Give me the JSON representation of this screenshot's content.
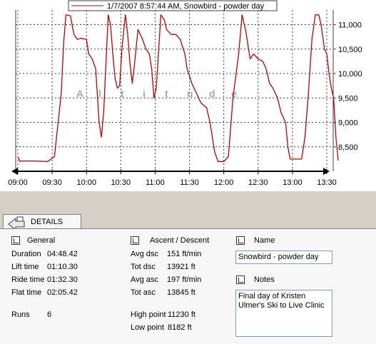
{
  "chart": {
    "legend": "1/7/2007 8:57:44 AM, Snowbird - powder day",
    "watermark": [
      "A",
      "l",
      "t",
      "i",
      "t",
      "u",
      "d",
      "e"
    ],
    "line_color": "#c00000",
    "grid_color": "#404040"
  },
  "chart_data": {
    "type": "line",
    "x_ticks": [
      "09:00",
      "09:30",
      "10:00",
      "10:30",
      "11:00",
      "11:30",
      "12:00",
      "12:30",
      "13:00",
      "13:30"
    ],
    "y_ticks": [
      "8,500",
      "9,000",
      "9,500",
      "10,000",
      "10,500",
      "11,000"
    ],
    "ylim": [
      8000,
      11300
    ],
    "series": [
      {
        "name": "1/7/2007 8:57:44 AM, Snowbird - powder day",
        "points": [
          [
            "09:00",
            8290
          ],
          [
            "09:02",
            8200
          ],
          [
            "09:04",
            8210
          ],
          [
            "09:15",
            8210
          ],
          [
            "09:26",
            8200
          ],
          [
            "09:29",
            8250
          ],
          [
            "09:32",
            8300
          ],
          [
            "09:38",
            9600
          ],
          [
            "09:40",
            10600
          ],
          [
            "09:42",
            11200
          ],
          [
            "09:46",
            11180
          ],
          [
            "09:49",
            10800
          ],
          [
            "09:52",
            10700
          ],
          [
            "09:55",
            10720
          ],
          [
            "10:00",
            10700
          ],
          [
            "10:02",
            10400
          ],
          [
            "10:05",
            10300
          ],
          [
            "10:08",
            10100
          ],
          [
            "10:11",
            9000
          ],
          [
            "10:13",
            8700
          ],
          [
            "10:15",
            9200
          ],
          [
            "10:19",
            11200
          ],
          [
            "10:21",
            11000
          ],
          [
            "10:23",
            10400
          ],
          [
            "10:25",
            9900
          ],
          [
            "10:27",
            9700
          ],
          [
            "10:29",
            9750
          ],
          [
            "10:31",
            10500
          ],
          [
            "10:34",
            11200
          ],
          [
            "10:36",
            10800
          ],
          [
            "10:38",
            10200
          ],
          [
            "10:40",
            9800
          ],
          [
            "10:42",
            10200
          ],
          [
            "10:45",
            10900
          ],
          [
            "10:49",
            10700
          ],
          [
            "10:52",
            10500
          ],
          [
            "10:55",
            10400
          ],
          [
            "10:57",
            10100
          ],
          [
            "10:59",
            9500
          ],
          [
            "11:01",
            9700
          ],
          [
            "11:05",
            11200
          ],
          [
            "11:08",
            11100
          ],
          [
            "11:10",
            10900
          ],
          [
            "11:14",
            10800
          ],
          [
            "11:18",
            10800
          ],
          [
            "11:22",
            10700
          ],
          [
            "11:26",
            10400
          ],
          [
            "11:28",
            10100
          ],
          [
            "11:32",
            9800
          ],
          [
            "11:36",
            9600
          ],
          [
            "11:40",
            9400
          ],
          [
            "11:45",
            9300
          ],
          [
            "11:48",
            9000
          ],
          [
            "11:52",
            8400
          ],
          [
            "11:55",
            8200
          ],
          [
            "12:00",
            8200
          ],
          [
            "12:04",
            8300
          ],
          [
            "12:08",
            9500
          ],
          [
            "12:13",
            10400
          ],
          [
            "12:16",
            11200
          ],
          [
            "12:19",
            10900
          ],
          [
            "12:23",
            10300
          ],
          [
            "12:26",
            10400
          ],
          [
            "12:30",
            10300
          ],
          [
            "12:34",
            10250
          ],
          [
            "12:37",
            10100
          ],
          [
            "12:40",
            9800
          ],
          [
            "12:43",
            9700
          ],
          [
            "12:47",
            9500
          ],
          [
            "12:50",
            9200
          ],
          [
            "12:54",
            9000
          ],
          [
            "12:56",
            8500
          ],
          [
            "12:58",
            8250
          ],
          [
            "13:08",
            8250
          ],
          [
            "13:11",
            8700
          ],
          [
            "13:14",
            9600
          ],
          [
            "13:17",
            10700
          ],
          [
            "13:20",
            11200
          ],
          [
            "13:23",
            11200
          ],
          [
            "13:25",
            11000
          ],
          [
            "13:28",
            10500
          ],
          [
            "13:30",
            10400
          ],
          [
            "13:32",
            10000
          ],
          [
            "13:34",
            9700
          ],
          [
            "13:36",
            9500
          ],
          [
            "13:38",
            8700
          ],
          [
            "13:40",
            8220
          ]
        ]
      }
    ]
  },
  "tab": {
    "label": "DETAILS"
  },
  "general": {
    "header": "General",
    "rows": [
      {
        "label": "Duration",
        "value": "04:48.42"
      },
      {
        "label": "Lift time",
        "value": "01:10.30"
      },
      {
        "label": "Ride time",
        "value": "01:32.30"
      },
      {
        "label": "Flat time",
        "value": "02:05.42"
      }
    ],
    "runs_label": "Runs",
    "runs_value": "6"
  },
  "ascent": {
    "header": "Ascent / Descent",
    "rows": [
      {
        "label": "Avg dsc",
        "value": "151 ft/min"
      },
      {
        "label": "Tot dsc",
        "value": "13921 ft"
      },
      {
        "label": "Avg asc",
        "value": "197 ft/min"
      },
      {
        "label": "Tot asc",
        "value": "13845 ft"
      }
    ],
    "high_label": "High point",
    "high_value": "11230 ft",
    "low_label": "Low point",
    "low_value": "8182 ft"
  },
  "name": {
    "header": "Name",
    "value": "Snowbird - powder day"
  },
  "notes": {
    "header": "Notes",
    "value": "Final day of Kristen Ulmer's Ski to Live Clinic"
  }
}
